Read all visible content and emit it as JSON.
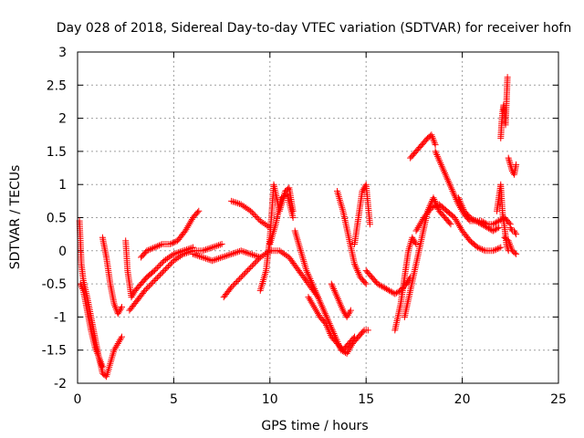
{
  "chart_data": {
    "type": "scatter",
    "title": "Day 028 of 2018, Sidereal Day-to-day VTEC variation (SDTVAR) for receiver hofn",
    "xlabel": "GPS time / hours",
    "ylabel": "SDTVAR / TECUs",
    "xlim": [
      0,
      25
    ],
    "ylim": [
      -2,
      3
    ],
    "xticks": [
      0,
      5,
      10,
      15,
      20,
      25
    ],
    "xtick_labels": [
      "0",
      "5",
      "10",
      "15",
      "20",
      "25"
    ],
    "yticks": [
      -2,
      -1.5,
      -1,
      -0.5,
      0,
      0.5,
      1,
      1.5,
      2,
      2.5,
      3
    ],
    "ytick_labels": [
      "-2",
      "-1.5",
      "-1",
      "-0.5",
      "0",
      "0.5",
      "1",
      "1.5",
      "2",
      "2.5",
      "3"
    ],
    "grid": true,
    "marker": "+",
    "color": "#ff0000",
    "series": [
      {
        "name": "s1",
        "x": [
          0.1,
          0.2,
          0.3,
          0.5,
          0.7,
          0.9,
          1.1,
          1.3,
          1.5,
          1.7,
          1.9,
          2.1,
          2.3
        ],
        "y": [
          0.45,
          -0.2,
          -0.45,
          -0.7,
          -1.0,
          -1.3,
          -1.6,
          -1.85,
          -1.9,
          -1.7,
          -1.5,
          -1.4,
          -1.3
        ]
      },
      {
        "name": "s2",
        "x": [
          0.15,
          0.3,
          0.5,
          0.7,
          0.9,
          1.1,
          1.3
        ],
        "y": [
          -0.5,
          -0.6,
          -0.9,
          -1.2,
          -1.45,
          -1.6,
          -1.75
        ]
      },
      {
        "name": "s3",
        "x": [
          1.3,
          1.5,
          1.7,
          1.9,
          2.1,
          2.3
        ],
        "y": [
          0.2,
          -0.1,
          -0.5,
          -0.8,
          -0.95,
          -0.85
        ]
      },
      {
        "name": "s4",
        "x": [
          2.5,
          2.6,
          2.8,
          3.0,
          3.3,
          3.6,
          4.0,
          4.5,
          5.0,
          5.5,
          6.0
        ],
        "y": [
          0.15,
          -0.3,
          -0.7,
          -0.6,
          -0.5,
          -0.4,
          -0.3,
          -0.15,
          -0.05,
          0.0,
          0.05
        ]
      },
      {
        "name": "s5",
        "x": [
          3.3,
          3.6,
          4.0,
          4.4,
          4.8,
          5.2,
          5.6,
          6.0,
          6.3
        ],
        "y": [
          -0.1,
          0.0,
          0.05,
          0.1,
          0.1,
          0.15,
          0.3,
          0.5,
          0.6
        ]
      },
      {
        "name": "s6",
        "x": [
          2.7,
          3.1,
          3.5,
          4.0,
          4.5,
          5.0,
          5.5,
          6.0,
          6.5,
          7.0,
          7.5
        ],
        "y": [
          -0.9,
          -0.75,
          -0.6,
          -0.45,
          -0.3,
          -0.15,
          -0.05,
          0.0,
          0.0,
          0.05,
          0.1
        ]
      },
      {
        "name": "s7",
        "x": [
          6.0,
          6.5,
          7.0,
          7.5,
          8.0,
          8.5,
          9.0,
          9.5
        ],
        "y": [
          -0.05,
          -0.1,
          -0.15,
          -0.1,
          -0.05,
          0.0,
          -0.05,
          -0.1
        ]
      },
      {
        "name": "s8",
        "x": [
          7.6,
          8.0,
          8.5,
          9.0,
          9.5,
          10.0,
          10.5,
          11.0,
          11.5,
          12.0,
          12.5
        ],
        "y": [
          -0.7,
          -0.55,
          -0.4,
          -0.25,
          -0.1,
          0.0,
          0.0,
          -0.1,
          -0.3,
          -0.5,
          -0.7
        ]
      },
      {
        "name": "s9",
        "x": [
          8.0,
          8.5,
          9.0,
          9.5,
          10.0
        ],
        "y": [
          0.75,
          0.7,
          0.6,
          0.45,
          0.35
        ]
      },
      {
        "name": "s10",
        "x": [
          9.5,
          9.8,
          10.0,
          10.2,
          10.5,
          10.8,
          11.0,
          11.2
        ],
        "y": [
          -0.6,
          -0.3,
          0.2,
          1.0,
          0.6,
          0.9,
          0.95,
          0.6
        ]
      },
      {
        "name": "s11",
        "x": [
          10.0,
          10.3,
          10.6,
          10.9,
          11.2
        ],
        "y": [
          0.1,
          0.4,
          0.8,
          0.85,
          0.5
        ]
      },
      {
        "name": "s12",
        "x": [
          11.3,
          11.6,
          11.9,
          12.2,
          12.5,
          12.8,
          13.1,
          13.4,
          13.7,
          14.0,
          14.3,
          14.6,
          14.9,
          15.1
        ],
        "y": [
          0.3,
          0.0,
          -0.3,
          -0.5,
          -0.7,
          -0.9,
          -1.1,
          -1.3,
          -1.5,
          -1.55,
          -1.4,
          -1.3,
          -1.2,
          -1.2
        ]
      },
      {
        "name": "s13",
        "x": [
          12.0,
          12.3,
          12.6,
          12.9,
          13.2,
          13.5,
          13.8,
          14.1,
          14.4
        ],
        "y": [
          -0.7,
          -0.85,
          -1.0,
          -1.1,
          -1.3,
          -1.4,
          -1.5,
          -1.4,
          -1.3
        ]
      },
      {
        "name": "s14",
        "x": [
          13.2,
          13.5,
          13.8,
          14.0,
          14.2
        ],
        "y": [
          -0.5,
          -0.7,
          -0.9,
          -1.0,
          -0.9
        ]
      },
      {
        "name": "s15",
        "x": [
          13.5,
          13.8,
          14.1,
          14.4,
          14.7,
          15.0
        ],
        "y": [
          0.9,
          0.6,
          0.2,
          -0.2,
          -0.4,
          -0.5
        ]
      },
      {
        "name": "s16",
        "x": [
          14.4,
          14.6,
          14.8,
          15.0,
          15.2
        ],
        "y": [
          0.1,
          0.5,
          0.9,
          1.0,
          0.4
        ]
      },
      {
        "name": "s17",
        "x": [
          15.0,
          15.3,
          15.6,
          15.9,
          16.2,
          16.5,
          16.8,
          17.1,
          17.3
        ],
        "y": [
          -0.3,
          -0.4,
          -0.5,
          -0.55,
          -0.6,
          -0.65,
          -0.6,
          -0.5,
          -0.4
        ]
      },
      {
        "name": "s18",
        "x": [
          16.5,
          16.8,
          17.0,
          17.2,
          17.4,
          17.6
        ],
        "y": [
          -1.2,
          -0.8,
          -0.4,
          0.0,
          0.2,
          0.1
        ]
      },
      {
        "name": "s19",
        "x": [
          17.0,
          17.3,
          17.6,
          17.9,
          18.2,
          18.5,
          18.8,
          19.1,
          19.4
        ],
        "y": [
          -1.0,
          -0.6,
          -0.2,
          0.2,
          0.6,
          0.8,
          0.6,
          0.5,
          0.4
        ]
      },
      {
        "name": "s20",
        "x": [
          17.3,
          17.6,
          17.9,
          18.2,
          18.4,
          18.6
        ],
        "y": [
          1.4,
          1.5,
          1.6,
          1.7,
          1.75,
          1.6
        ]
      },
      {
        "name": "s21",
        "x": [
          18.6,
          18.9,
          19.2,
          19.5,
          19.8,
          20.1,
          20.4,
          20.7,
          21.0,
          21.3,
          21.6,
          21.9
        ],
        "y": [
          1.5,
          1.3,
          1.1,
          0.9,
          0.7,
          0.55,
          0.45,
          0.45,
          0.4,
          0.35,
          0.3,
          0.35
        ]
      },
      {
        "name": "s22",
        "x": [
          17.6,
          18.0,
          18.4,
          18.8,
          19.2,
          19.6,
          20.0,
          20.4,
          20.8,
          21.2,
          21.6,
          22.0
        ],
        "y": [
          0.3,
          0.5,
          0.65,
          0.7,
          0.6,
          0.5,
          0.3,
          0.15,
          0.05,
          0.0,
          0.0,
          0.05
        ]
      },
      {
        "name": "s23",
        "x": [
          19.8,
          20.1,
          20.4,
          20.7,
          21.0,
          21.3,
          21.6,
          21.9,
          22.2,
          22.5
        ],
        "y": [
          0.8,
          0.6,
          0.5,
          0.45,
          0.45,
          0.4,
          0.4,
          0.45,
          0.5,
          0.4
        ]
      },
      {
        "name": "s24",
        "x": [
          21.8,
          21.9,
          22.0,
          22.1,
          22.2,
          22.3,
          22.4
        ],
        "y": [
          0.6,
          0.8,
          1.0,
          0.55,
          0.35,
          0.1,
          0.0
        ]
      },
      {
        "name": "s25",
        "x": [
          22.0,
          22.05,
          22.1,
          22.15,
          22.2,
          22.25,
          22.3,
          22.35
        ],
        "y": [
          1.7,
          1.95,
          2.1,
          2.2,
          2.05,
          1.9,
          2.25,
          2.62
        ]
      },
      {
        "name": "s26",
        "x": [
          22.4,
          22.5,
          22.6,
          22.7,
          22.8
        ],
        "y": [
          1.4,
          1.3,
          1.2,
          1.15,
          1.3
        ]
      },
      {
        "name": "s27",
        "x": [
          22.2,
          22.4,
          22.6,
          22.8
        ],
        "y": [
          0.2,
          0.15,
          0.0,
          -0.05
        ]
      },
      {
        "name": "s28",
        "x": [
          22.5,
          22.6,
          22.7,
          22.8
        ],
        "y": [
          0.35,
          0.3,
          0.3,
          0.25
        ]
      }
    ]
  }
}
